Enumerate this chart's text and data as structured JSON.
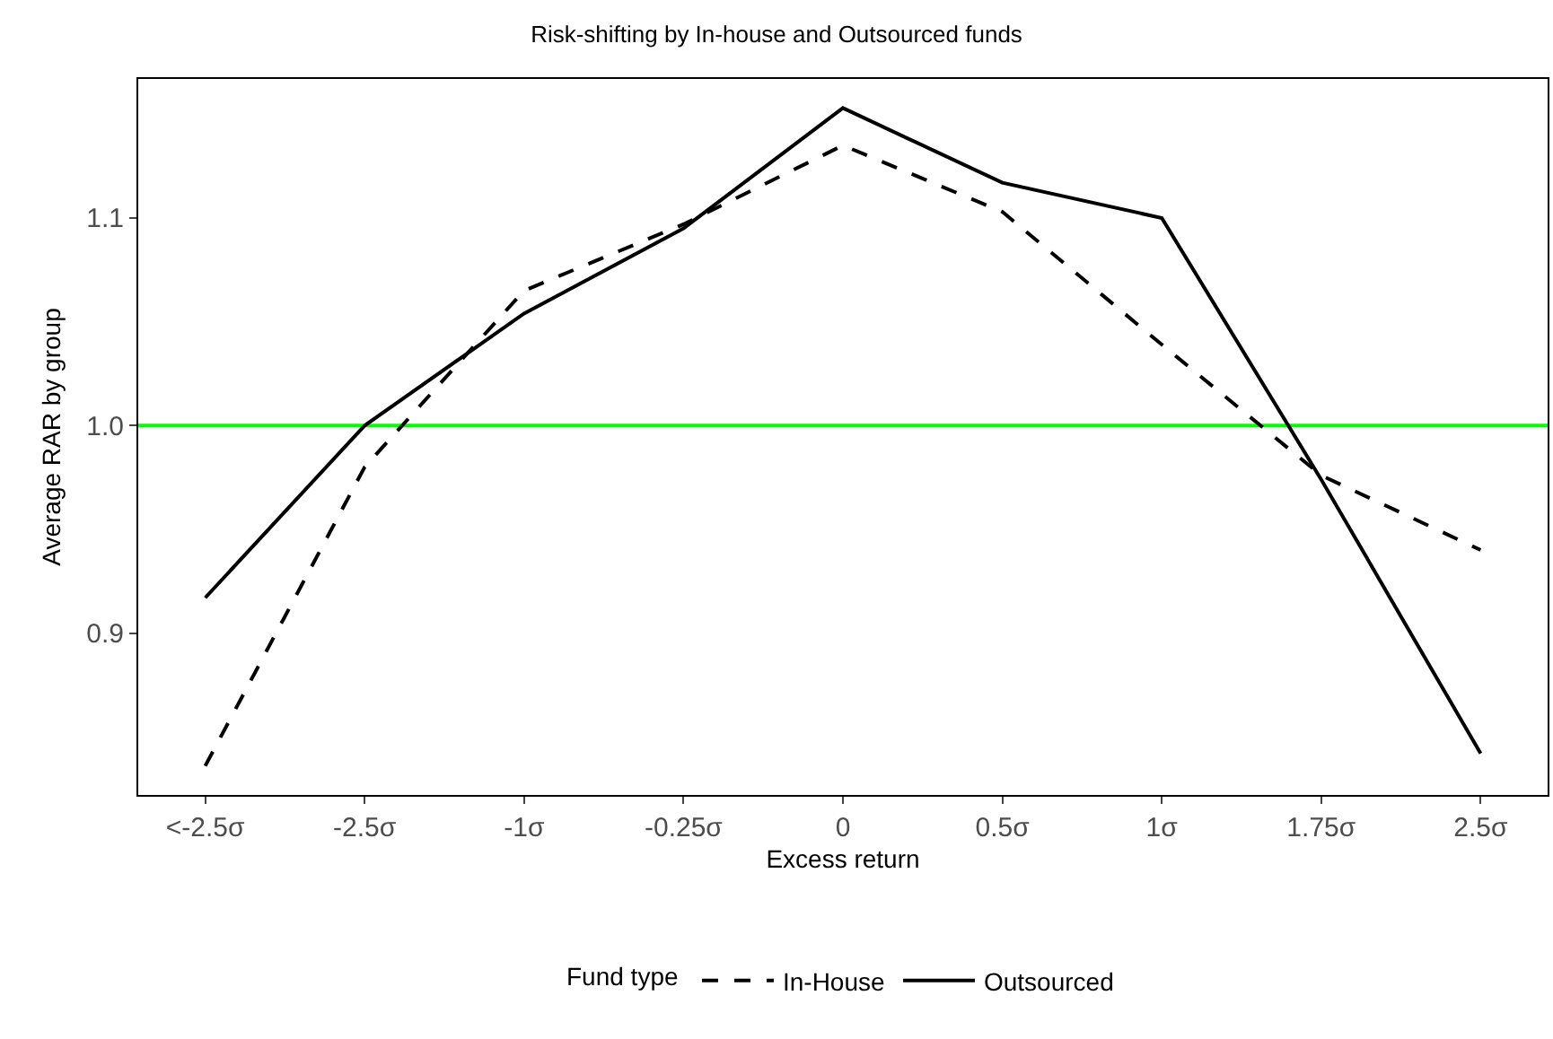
{
  "chart_data": {
    "type": "line",
    "title": "Risk-shifting by In-house and Outsourced funds",
    "xlabel": "Excess return",
    "ylabel": "Average RAR by group",
    "legend_title": "Fund type",
    "categories": [
      "<-2.5σ",
      "-2.5σ",
      "-1σ",
      "-0.25σ",
      "0",
      "0.5σ",
      "1σ",
      "1.75σ",
      "2.5σ"
    ],
    "series": [
      {
        "name": "In-House",
        "color": "#000000",
        "line_style": "dashed",
        "values": [
          0.836,
          0.98,
          1.065,
          1.097,
          1.135,
          1.103,
          1.039,
          0.976,
          0.94
        ]
      },
      {
        "name": "Outsourced",
        "color": "#000000",
        "line_style": "solid",
        "values": [
          0.917,
          1.0,
          1.054,
          1.095,
          1.153,
          1.117,
          1.1,
          0.974,
          0.842
        ]
      }
    ],
    "ylim": [
      0.822,
      1.167
    ],
    "yticks": [
      0.9,
      {
        "value": 1.0,
        "label": "1.0"
      },
      1.1
    ],
    "ref_lines": [
      {
        "axis": "y",
        "value": 1.0,
        "color": "#00ff00"
      }
    ],
    "grid": false,
    "legend": "bottom",
    "marker": "none"
  }
}
